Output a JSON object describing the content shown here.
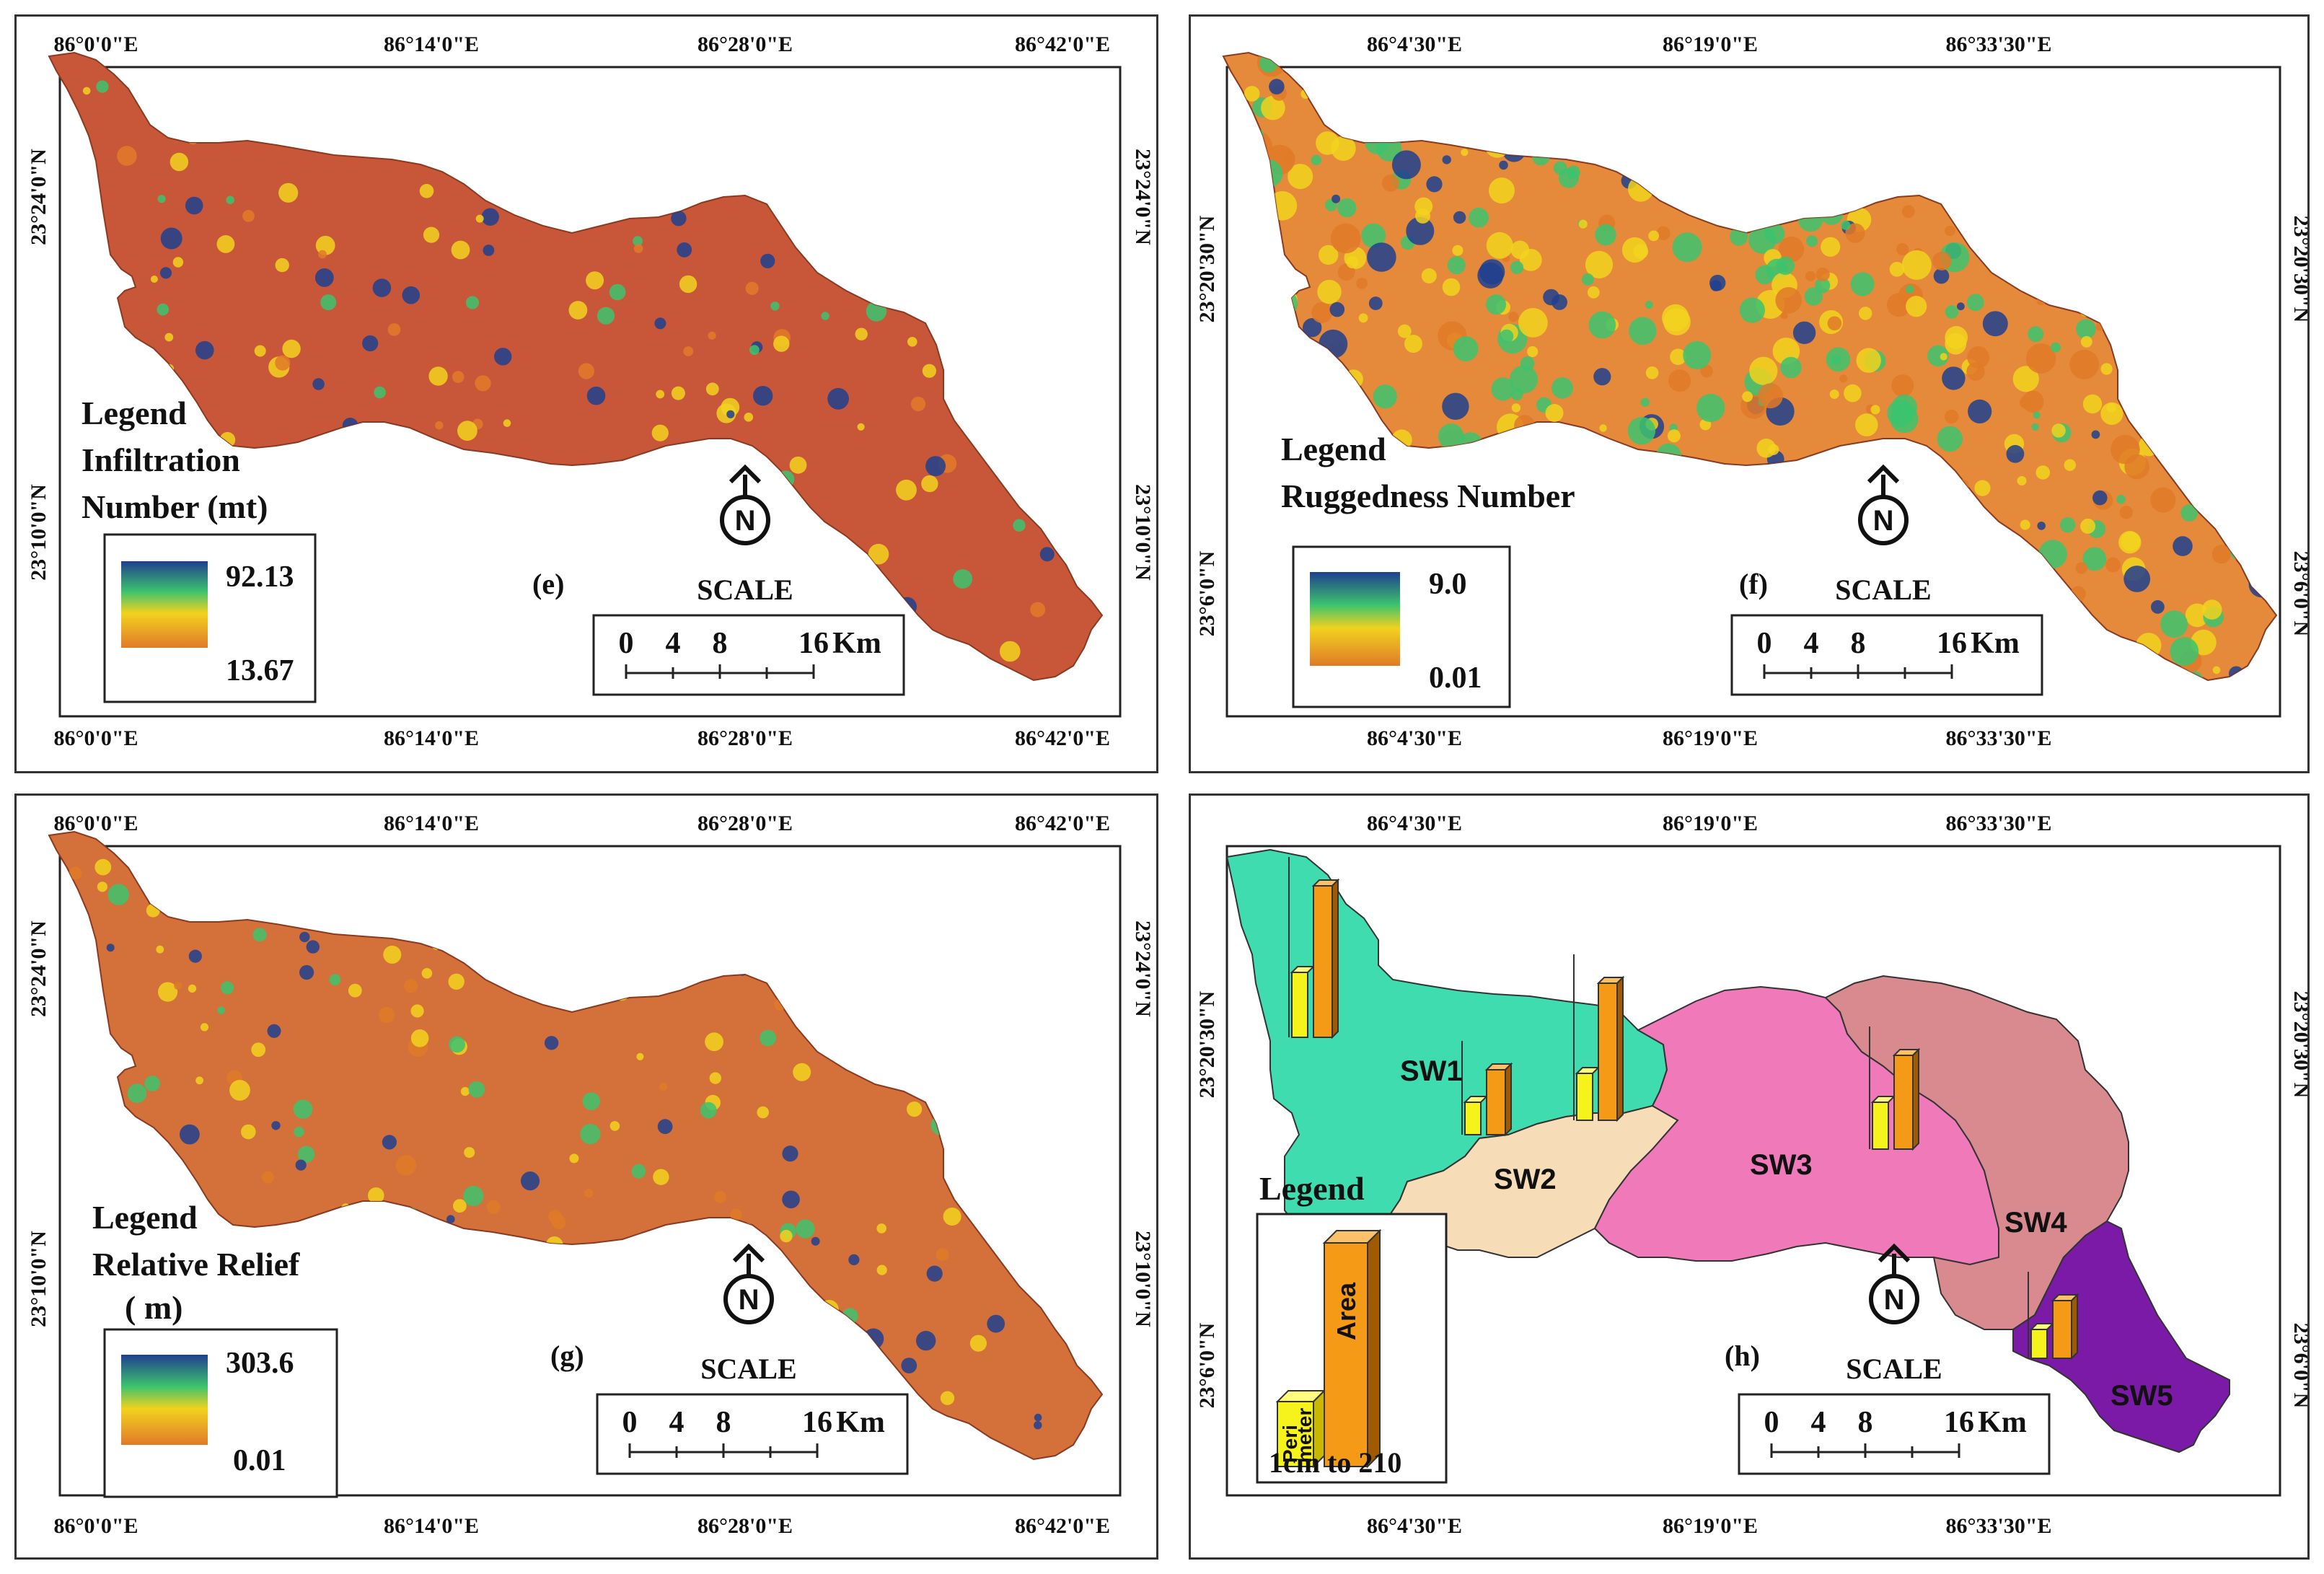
{
  "colors": {
    "basin_base": "#c8573a",
    "ramp_high": "#1f3f8f",
    "ramp_mid": "#3cc36e",
    "ramp_yellow": "#f2d21e",
    "ramp_low": "#e07a28",
    "sw1": "#3fdcb0",
    "sw2": "#f7dcb8",
    "sw3": "#f07ab9",
    "sw4": "#d98a8f",
    "sw5": "#7a1aa6",
    "bar_perimeter": "#f5f21c",
    "bar_area": "#f59a16"
  },
  "panels": {
    "e": {
      "label": "(e)",
      "top_ticks": [
        "86°0'0\"E",
        "86°14'0\"E",
        "86°28'0\"E",
        "86°42'0\"E"
      ],
      "bottom_ticks": [
        "86°0'0\"E",
        "86°14'0\"E",
        "86°28'0\"E",
        "86°42'0\"E"
      ],
      "left_ticks": [
        "23°24'0\"N",
        "23°10'0\"N"
      ],
      "right_ticks": [
        "23°24'0\"N",
        "23°10'0\"N"
      ],
      "legend_lines": [
        "Legend",
        "Infiltration",
        "Number  (mt)"
      ],
      "legend_high": "92.13",
      "legend_low": "13.67",
      "scale_title": "SCALE",
      "scale_numbers": [
        "0",
        "4",
        "8",
        "16"
      ],
      "scale_unit": "Km",
      "north_letter": "N"
    },
    "f": {
      "label": "(f)",
      "top_ticks": [
        "86°4'30\"E",
        "86°19'0\"E",
        "86°33'30\"E"
      ],
      "bottom_ticks": [
        "86°4'30\"E",
        "86°19'0\"E",
        "86°33'30\"E"
      ],
      "left_ticks": [
        "23°20'30\"N",
        "23°6'0\"N"
      ],
      "right_ticks": [
        "23°20'30\"N",
        "23°6'0\"N"
      ],
      "legend_lines": [
        "Legend",
        "Ruggedness Number"
      ],
      "legend_high": "9.0",
      "legend_low": "0.01",
      "scale_title": "SCALE",
      "scale_numbers": [
        "0",
        "4",
        "8",
        "16"
      ],
      "scale_unit": "Km",
      "north_letter": "N"
    },
    "g": {
      "label": "(g)",
      "top_ticks": [
        "86°0'0\"E",
        "86°14'0\"E",
        "86°28'0\"E",
        "86°42'0\"E"
      ],
      "bottom_ticks": [
        "86°0'0\"E",
        "86°14'0\"E",
        "86°28'0\"E",
        "86°42'0\"E"
      ],
      "left_ticks": [
        "23°24'0\"N",
        "23°10'0\"N"
      ],
      "right_ticks": [
        "23°24'0\"N",
        "23°10'0\"N"
      ],
      "legend_lines": [
        "Legend",
        "Relative Relief",
        "( m)"
      ],
      "legend_high": "303.6",
      "legend_low": "0.01",
      "scale_title": "SCALE",
      "scale_numbers": [
        "0",
        "4",
        "8",
        "16"
      ],
      "scale_unit": "Km",
      "north_letter": "N"
    },
    "h": {
      "label": "(h)",
      "top_ticks": [
        "86°4'30\"E",
        "86°19'0\"E",
        "86°33'30\"E"
      ],
      "bottom_ticks": [
        "86°4'30\"E",
        "86°19'0\"E",
        "86°33'30\"E"
      ],
      "left_ticks": [
        "23°20'30\"N",
        "23°6'0\"N"
      ],
      "right_ticks": [
        "23°20'30\"N",
        "23°6'0\"N"
      ],
      "legend_title": "Legend",
      "legend_bar_perimeter": [
        "Peri",
        "meter"
      ],
      "legend_bar_area": "Area",
      "legend_scale": "1cm to 210",
      "subwatersheds": [
        "SW1",
        "SW2",
        "SW3",
        "SW4",
        "SW5"
      ],
      "scale_title": "SCALE",
      "scale_numbers": [
        "0",
        "4",
        "8",
        "16"
      ],
      "scale_unit": "Km",
      "north_letter": "N"
    }
  }
}
